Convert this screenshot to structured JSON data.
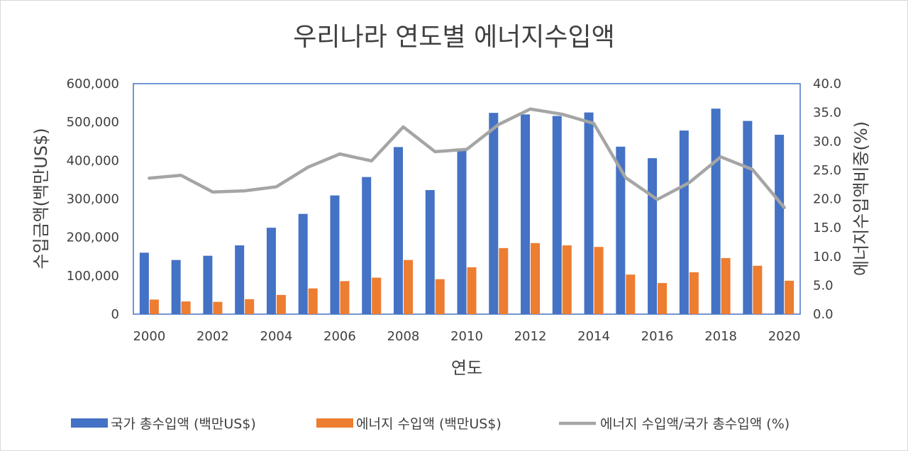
{
  "chart_data": {
    "type": "bar",
    "title": "우리나라 연도별 에너지수입액",
    "xlabel": "연도",
    "ylabel": "수입금액(백만US$)",
    "y2label": "에너지수입액비중(%)",
    "ylim": [
      0,
      600000
    ],
    "y2lim": [
      0,
      40
    ],
    "yticks": [
      "0",
      "100,000",
      "200,000",
      "300,000",
      "400,000",
      "500,000",
      "600,000"
    ],
    "y2ticks": [
      "0.0",
      "5.0",
      "10.0",
      "15.0",
      "20.0",
      "25.0",
      "30.0",
      "35.0",
      "40.0"
    ],
    "xticks": [
      "2000",
      "2002",
      "2004",
      "2006",
      "2008",
      "2010",
      "2012",
      "2014",
      "2016",
      "2018",
      "2020"
    ],
    "categories": [
      "2000",
      "2001",
      "2002",
      "2003",
      "2004",
      "2005",
      "2006",
      "2007",
      "2008",
      "2009",
      "2010",
      "2011",
      "2012",
      "2013",
      "2014",
      "2015",
      "2016",
      "2017",
      "2018",
      "2019",
      "2020"
    ],
    "series": [
      {
        "name": "국가 총수입액 (백만US$)",
        "type": "bar",
        "axis": "left",
        "color": "#4472c4",
        "values": [
          160000,
          141000,
          152000,
          179000,
          225000,
          261000,
          309000,
          357000,
          435000,
          323000,
          425000,
          524000,
          520000,
          516000,
          525000,
          436000,
          406000,
          478000,
          535000,
          503000,
          467000
        ]
      },
      {
        "name": "에너지 수입액 (백만US$)",
        "type": "bar",
        "axis": "left",
        "color": "#ed7d31",
        "values": [
          38000,
          33000,
          32000,
          39000,
          50000,
          67000,
          86000,
          95000,
          141000,
          91000,
          122000,
          172000,
          185000,
          179000,
          175000,
          103000,
          81000,
          109000,
          146000,
          126000,
          87000
        ]
      },
      {
        "name": "에너지 수입액/국가 총수입액 (%)",
        "type": "line",
        "axis": "right",
        "color": "#a5a5a5",
        "values": [
          23.6,
          24.1,
          21.2,
          21.4,
          22.1,
          25.5,
          27.8,
          26.6,
          32.5,
          28.2,
          28.6,
          32.9,
          35.6,
          34.7,
          33.1,
          23.7,
          19.9,
          22.8,
          27.3,
          25.1,
          18.5
        ]
      }
    ],
    "legend": "bottom",
    "grid": false
  }
}
